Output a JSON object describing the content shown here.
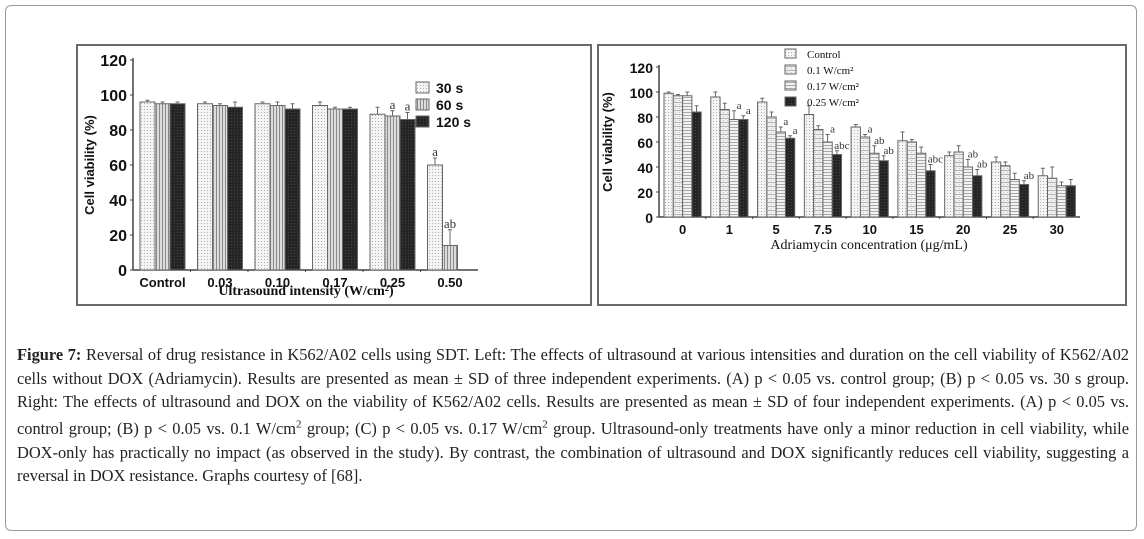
{
  "chart_data": [
    {
      "type": "bar",
      "panel": "left",
      "title": "",
      "xlabel": "Ultrasound intensity (W/cm²)",
      "ylabel": "Cell viability (%)",
      "ylim": [
        0,
        120
      ],
      "yticks": [
        0,
        20,
        40,
        60,
        80,
        100,
        120
      ],
      "categories": [
        "Control",
        "0.03",
        "0.10",
        "0.17",
        "0.25",
        "0.50"
      ],
      "legend_position": "top-right",
      "series": [
        {
          "name": "30 s",
          "pattern": "dotted",
          "values": [
            96,
            95,
            95,
            94,
            89,
            60
          ],
          "errors": [
            1,
            1,
            1,
            2,
            4,
            4
          ]
        },
        {
          "name": "60 s",
          "pattern": "vertical-stripes",
          "values": [
            95,
            94,
            94,
            92,
            88,
            14
          ],
          "errors": [
            1,
            1,
            2,
            1,
            3,
            9
          ]
        },
        {
          "name": "120 s",
          "pattern": "dark",
          "values": [
            95,
            93,
            92,
            92,
            86,
            null
          ],
          "errors": [
            1,
            3,
            3,
            1,
            4,
            null
          ]
        }
      ],
      "annotations": [
        {
          "category": "0.25",
          "series": "60 s",
          "text": "a"
        },
        {
          "category": "0.25",
          "series": "120 s",
          "text": "a"
        },
        {
          "category": "0.50",
          "series": "30 s",
          "text": "a"
        },
        {
          "category": "0.50",
          "series": "60 s",
          "text": "ab"
        }
      ]
    },
    {
      "type": "bar",
      "panel": "right",
      "title": "",
      "xlabel": "Adriamycin concentration (μg/mL)",
      "ylabel": "Cell viability (%)",
      "ylim": [
        0,
        120
      ],
      "yticks": [
        0,
        20,
        40,
        60,
        80,
        100,
        120
      ],
      "categories": [
        "0",
        "1",
        "5",
        "7.5",
        "10",
        "15",
        "20",
        "25",
        "30"
      ],
      "legend_position": "top-right",
      "series": [
        {
          "name": "Control",
          "pattern": "dotted",
          "values": [
            99,
            96,
            92,
            82,
            72,
            61,
            49,
            44,
            33
          ],
          "errors": [
            1,
            4,
            3,
            7,
            2,
            7,
            3,
            4,
            6
          ]
        },
        {
          "name": "0.1 W/cm²",
          "pattern": "hatched",
          "values": [
            97,
            86,
            80,
            70,
            64,
            60,
            52,
            41,
            31
          ],
          "errors": [
            1,
            5,
            4,
            3,
            2,
            2,
            5,
            3,
            9
          ]
        },
        {
          "name": "0.17 W/cm²",
          "pattern": "horizontal-stripes",
          "values": [
            97,
            78,
            68,
            60,
            51,
            51,
            40,
            30,
            25
          ],
          "errors": [
            3,
            7,
            4,
            6,
            6,
            5,
            6,
            5,
            3
          ]
        },
        {
          "name": "0.25 W/cm²",
          "pattern": "dark",
          "values": [
            84,
            78,
            63,
            50,
            45,
            37,
            33,
            26,
            25
          ],
          "errors": [
            5,
            3,
            2,
            3,
            4,
            5,
            5,
            3,
            5
          ]
        }
      ],
      "annotations": [
        {
          "category": "1",
          "series": "0.17 W/cm²",
          "text": "a"
        },
        {
          "category": "1",
          "series": "0.25 W/cm²",
          "text": "a"
        },
        {
          "category": "5",
          "series": "0.17 W/cm²",
          "text": "a"
        },
        {
          "category": "5",
          "series": "0.25 W/cm²",
          "text": "a"
        },
        {
          "category": "7.5",
          "series": "0.17 W/cm²",
          "text": "a"
        },
        {
          "category": "7.5",
          "series": "0.25 W/cm²",
          "text": "abc"
        },
        {
          "category": "10",
          "series": "0.1 W/cm²",
          "text": "a"
        },
        {
          "category": "10",
          "series": "0.17 W/cm²",
          "text": "ab"
        },
        {
          "category": "10",
          "series": "0.25 W/cm²",
          "text": "ab"
        },
        {
          "category": "15",
          "series": "0.25 W/cm²",
          "text": "abc"
        },
        {
          "category": "20",
          "series": "0.17 W/cm²",
          "text": "ab"
        },
        {
          "category": "20",
          "series": "0.25 W/cm²",
          "text": "ab"
        },
        {
          "category": "25",
          "series": "0.25 W/cm²",
          "text": "ab"
        }
      ]
    }
  ],
  "caption": {
    "label": "Figure 7:",
    "parts": [
      {
        "t": " Reversal of drug resistance in K562/A02 cells using SDT. Left: The effects of ultrasound at various intensities and duration on the cell viability of K562/A02 cells without DOX (Adriamycin). Results are presented as mean ± SD of three independent experiments. (A) p < 0.05 vs. control group; (B) p < 0.05 vs. 30 s group. Right: The effects of ultrasound and DOX on the viability of K562/A02 cells. Results are presented as mean ± SD of four independent experiments. (A) p < 0.05 vs. control group; (B) p < 0.05 vs. 0.1 W/cm"
      },
      {
        "sup": "2"
      },
      {
        "t": " group; (C) p < 0.05 vs. 0.17 W/cm"
      },
      {
        "sup": "2"
      },
      {
        "t": " group. Ultrasound-only treatments have only a minor reduction in cell viability, while DOX-only has practically no impact (as observed in the study). By contrast, the combination of ultrasound and DOX significantly reduces cell viability, suggesting a reversal in DOX resistance. Graphs courtesy of [68]."
      }
    ]
  }
}
